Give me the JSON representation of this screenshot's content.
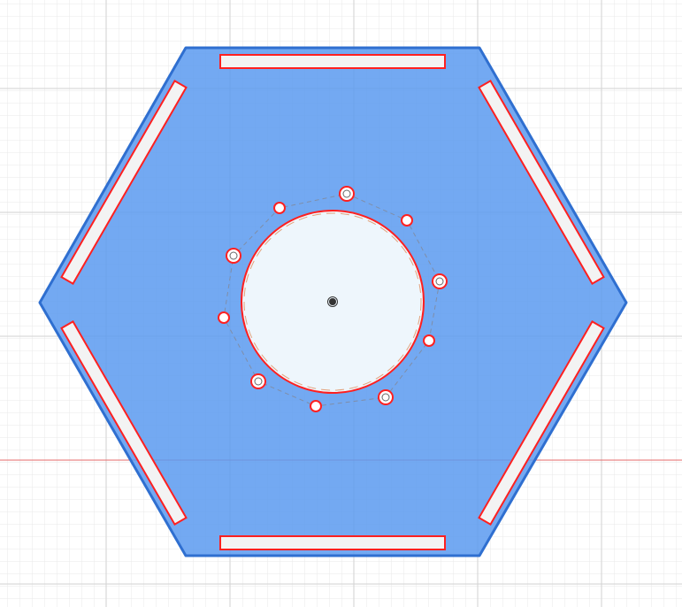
{
  "sketch": {
    "shape": "hexagon-plate",
    "plate_color": "#5b9af0",
    "plate_fill_opacity": 0.85,
    "plate_edge_color": "#2f6fd0",
    "slot_count": 6,
    "center_hole": "circle",
    "small_hole_count": 10,
    "origin": "center-point",
    "colors": {
      "background": "#ffffff",
      "grid_minor": "#e6e6e6",
      "grid_major": "#d0d0d0",
      "axis_x": "#e46a6a",
      "profile_highlight": "#ff2020",
      "cutout_fill": "#eef6fc",
      "construction_line": "#8a8a8a",
      "origin_point": "#333333"
    }
  }
}
